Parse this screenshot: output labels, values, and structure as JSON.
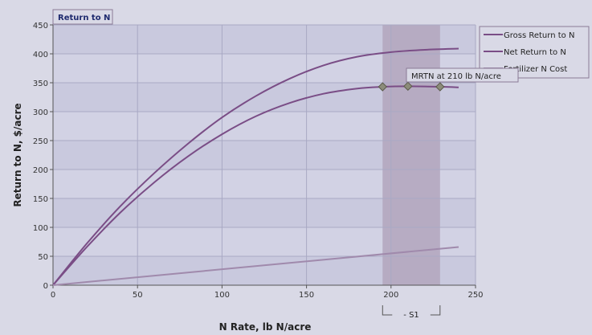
{
  "chart_data": {
    "type": "line",
    "title": "Return to N",
    "xlabel": "N Rate, lb N/acre",
    "ylabel": "Return to N, $/acre",
    "xlim": [
      0,
      250
    ],
    "ylim": [
      0,
      450
    ],
    "x_ticks": [
      0,
      50,
      100,
      150,
      200,
      250
    ],
    "y_ticks": [
      0,
      50,
      100,
      150,
      200,
      250,
      300,
      350,
      400,
      450
    ],
    "grid": true,
    "legend": "top-right",
    "series": [
      {
        "name": "Gross Return to N",
        "color": "#7a4d86",
        "x": [
          0,
          20,
          40,
          60,
          80,
          100,
          120,
          140,
          160,
          180,
          200,
          220,
          240
        ],
        "y": [
          0,
          72,
          137,
          194,
          245,
          290,
          327,
          357,
          380,
          395,
          403,
          407,
          409
        ]
      },
      {
        "name": "Net Return to N",
        "color": "#7a4d86",
        "x": [
          0,
          20,
          40,
          60,
          80,
          100,
          120,
          140,
          160,
          180,
          195,
          210,
          230,
          240
        ],
        "y": [
          0,
          66,
          126,
          178,
          223,
          261,
          292,
          315,
          331,
          340,
          343,
          344,
          343,
          342
        ]
      },
      {
        "name": "Fertilizer N Cost",
        "color": "#a08aac",
        "x": [
          0,
          240
        ],
        "y": [
          0,
          66
        ]
      }
    ],
    "mrtn_markers": {
      "x": [
        195,
        210,
        229
      ],
      "y": [
        343,
        344,
        343
      ],
      "color": "#8c8c7a"
    },
    "profitable_range": {
      "x": [
        195,
        229
      ],
      "color": "#b3a6bd"
    },
    "annotations": {
      "mrtn_label": "MRTN at 210 lb N/acre",
      "range_label": "- S1"
    }
  }
}
